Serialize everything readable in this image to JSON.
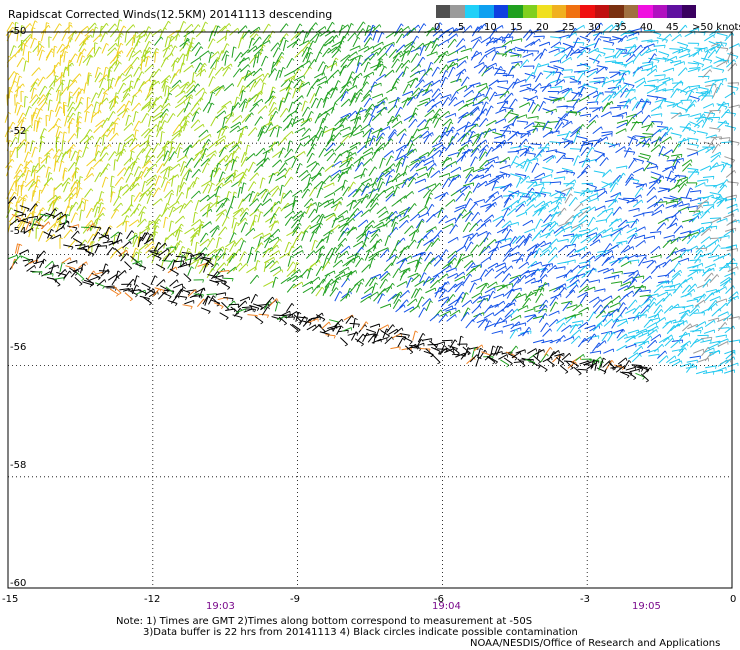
{
  "title": "Rapidscat Corrected Winds(12.5KM) 20141113 descending",
  "legend": {
    "labels": [
      "0",
      "5",
      "10",
      "15",
      "20",
      "25",
      "30",
      "35",
      "40",
      "45",
      ">50 knots"
    ],
    "colors": [
      "#505050",
      "#9a9a9a",
      "#20d0f8",
      "#0ea0f0",
      "#1040e0",
      "#20a020",
      "#80d020",
      "#f0e020",
      "#f0b020",
      "#f07010",
      "#f01010",
      "#c01010",
      "#7a3010",
      "#a07040",
      "#f010e0",
      "#b010c0",
      "#6010a0",
      "#3a0060"
    ]
  },
  "axes": {
    "y_labels": [
      "-50",
      "-52",
      "-54",
      "-56",
      "-58",
      "-60"
    ],
    "x_labels": [
      "-15",
      "-12",
      "-9",
      "-6",
      "-3",
      "0"
    ]
  },
  "times": [
    "19:03",
    "19:04",
    "19:05"
  ],
  "notes": {
    "line1": "Note: 1) Times are GMT 2)Times along bottom correspond to measurement at -50S",
    "line2": "3)Data buffer is 22 hrs from 20141113 4) Black circles indicate possible contamination",
    "line3": "NOAA/NESDIS/Office of Research and Applications"
  },
  "chart_data": {
    "type": "scatter",
    "description_kind": "wind barb map",
    "xlim": [
      -15,
      0
    ],
    "ylim": [
      -60,
      -50
    ],
    "x_ticks": [
      -15,
      -12,
      -9,
      -6,
      -3,
      0
    ],
    "y_ticks": [
      -50,
      -52,
      -54,
      -56,
      -58,
      -60
    ],
    "grid": true,
    "legend_placement": "top-right",
    "units": "knots",
    "color_bins_knots": [
      0,
      5,
      10,
      15,
      20,
      25,
      30,
      35,
      40,
      45,
      50
    ]
  }
}
